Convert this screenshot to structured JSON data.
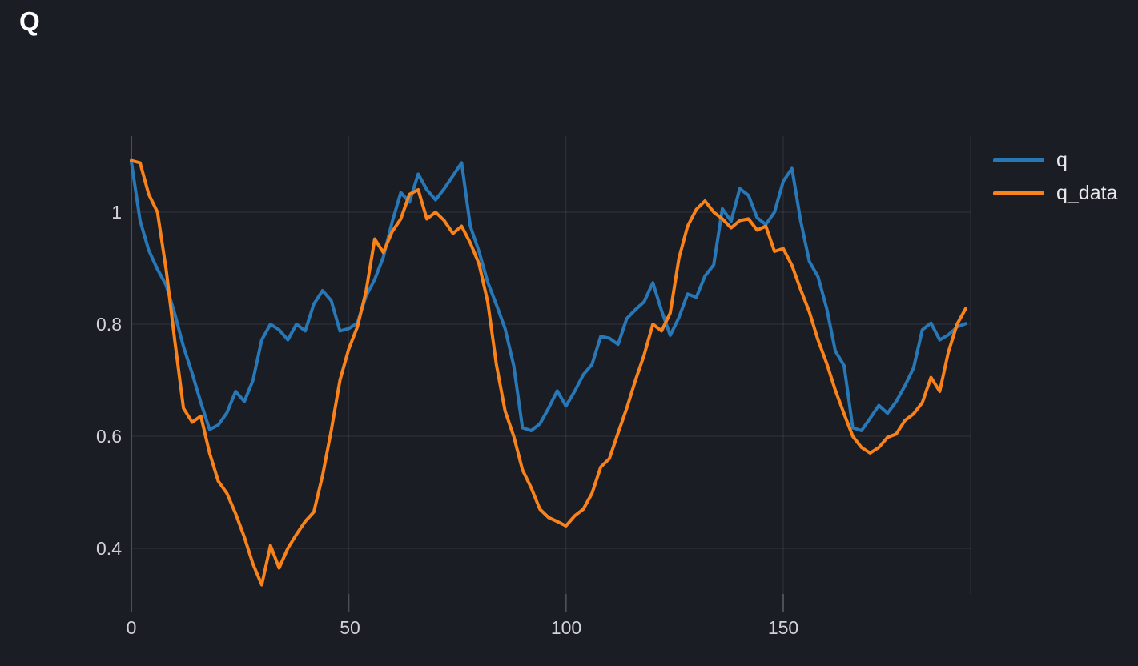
{
  "panel": {
    "title": "Q"
  },
  "colors": {
    "background": "#1a1d24",
    "title": "#ffffff",
    "tick_label": "#d2d3d6",
    "legend_label": "#e8e9eb",
    "grid": "rgba(255,255,255,0.07)",
    "axis": "#4c4f56",
    "series_q": "#2878b7",
    "series_q_data": "#f9821a"
  },
  "chart_data": {
    "type": "line",
    "title": "Q",
    "xlabel": "",
    "ylabel": "",
    "grid": true,
    "legend_position": "right-top",
    "xlim": [
      0,
      193
    ],
    "ylim": [
      0.27,
      1.135
    ],
    "x_ticks": [
      0,
      50,
      100,
      150
    ],
    "x_tick_labels": [
      "0",
      "50",
      "100",
      "150"
    ],
    "y_ticks": [
      1,
      0.8,
      0.6,
      0.4
    ],
    "y_tick_labels": [
      "1",
      "0.8",
      "0.6",
      "0.4"
    ],
    "x": [
      0,
      2,
      4,
      6,
      8,
      10,
      12,
      14,
      16,
      18,
      20,
      22,
      24,
      26,
      28,
      30,
      32,
      34,
      36,
      38,
      40,
      42,
      44,
      46,
      48,
      50,
      52,
      54,
      56,
      58,
      60,
      62,
      64,
      66,
      68,
      70,
      72,
      74,
      76,
      78,
      80,
      82,
      84,
      86,
      88,
      90,
      92,
      94,
      96,
      98,
      100,
      102,
      104,
      106,
      108,
      110,
      112,
      114,
      116,
      118,
      120,
      122,
      124,
      126,
      128,
      130,
      132,
      134,
      136,
      138,
      140,
      142,
      144,
      146,
      148,
      150,
      152,
      154,
      156,
      158,
      160,
      162,
      164,
      166,
      168,
      170,
      172,
      174,
      176,
      178,
      180,
      182,
      184,
      186,
      188,
      190,
      192
    ],
    "series": [
      {
        "name": "q",
        "color": "#2878b7",
        "values": [
          1.09,
          0.985,
          0.932,
          0.898,
          0.87,
          0.818,
          0.76,
          0.712,
          0.66,
          0.612,
          0.62,
          0.642,
          0.68,
          0.662,
          0.7,
          0.772,
          0.8,
          0.79,
          0.772,
          0.8,
          0.788,
          0.836,
          0.86,
          0.842,
          0.788,
          0.792,
          0.802,
          0.85,
          0.88,
          0.92,
          0.982,
          1.035,
          1.018,
          1.068,
          1.04,
          1.022,
          1.042,
          1.065,
          1.088,
          0.975,
          0.93,
          0.875,
          0.835,
          0.792,
          0.726,
          0.615,
          0.61,
          0.622,
          0.65,
          0.681,
          0.654,
          0.68,
          0.71,
          0.728,
          0.778,
          0.775,
          0.764,
          0.81,
          0.826,
          0.84,
          0.874,
          0.824,
          0.78,
          0.812,
          0.854,
          0.848,
          0.886,
          0.906,
          1.006,
          0.984,
          1.042,
          1.03,
          0.99,
          0.978,
          1.0,
          1.055,
          1.078,
          0.985,
          0.912,
          0.885,
          0.828,
          0.752,
          0.726,
          0.615,
          0.61,
          0.632,
          0.655,
          0.641,
          0.662,
          0.69,
          0.722,
          0.79,
          0.802,
          0.772,
          0.781,
          0.795,
          0.801
        ]
      },
      {
        "name": "q_data",
        "color": "#f9821a",
        "values": [
          1.092,
          1.088,
          1.032,
          1.0,
          0.898,
          0.77,
          0.65,
          0.625,
          0.636,
          0.57,
          0.52,
          0.498,
          0.462,
          0.42,
          0.372,
          0.335,
          0.405,
          0.365,
          0.4,
          0.425,
          0.448,
          0.465,
          0.53,
          0.61,
          0.7,
          0.755,
          0.795,
          0.858,
          0.952,
          0.928,
          0.965,
          0.988,
          1.032,
          1.04,
          0.988,
          1.0,
          0.985,
          0.962,
          0.975,
          0.945,
          0.908,
          0.84,
          0.728,
          0.645,
          0.6,
          0.54,
          0.508,
          0.47,
          0.455,
          0.448,
          0.44,
          0.458,
          0.47,
          0.498,
          0.545,
          0.56,
          0.606,
          0.65,
          0.7,
          0.745,
          0.8,
          0.788,
          0.82,
          0.918,
          0.975,
          1.005,
          1.02,
          1.0,
          0.988,
          0.972,
          0.985,
          0.988,
          0.968,
          0.975,
          0.93,
          0.935,
          0.905,
          0.862,
          0.822,
          0.772,
          0.73,
          0.682,
          0.64,
          0.6,
          0.58,
          0.57,
          0.58,
          0.598,
          0.604,
          0.628,
          0.64,
          0.66,
          0.705,
          0.68,
          0.75,
          0.8,
          0.828
        ]
      }
    ]
  },
  "legend": {
    "items": [
      {
        "label": "q"
      },
      {
        "label": "q_data"
      }
    ]
  }
}
